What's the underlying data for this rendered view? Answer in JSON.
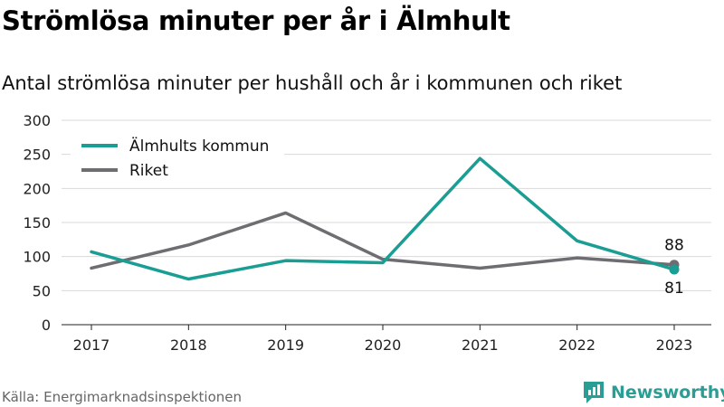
{
  "header": {
    "title": "Strömlösa minuter per år i Älmhult",
    "subtitle": "Antal strömlösa minuter per hushåll och år i kommunen och riket"
  },
  "footer": {
    "source": "Källa: Energimarknadsinspektionen",
    "brand": "Newsworthy"
  },
  "colors": {
    "almhult": "#1a9e94",
    "riket": "#6d6d72",
    "brand": "#2a9d95"
  },
  "chart_data": {
    "type": "line",
    "title": "Strömlösa minuter per år i Älmhult",
    "subtitle": "Antal strömlösa minuter per hushåll och år i kommunen och riket",
    "x": [
      "2017",
      "2018",
      "2019",
      "2020",
      "2021",
      "2022",
      "2023"
    ],
    "y_ticks": [
      "0",
      "50",
      "100",
      "150",
      "200",
      "250",
      "300"
    ],
    "ylim": [
      0,
      300
    ],
    "grid": true,
    "legend_position": "top-left",
    "series": [
      {
        "name": "Älmhults kommun",
        "values": [
          107,
          67,
          94,
          91,
          244,
          123,
          81
        ],
        "end_label": "81"
      },
      {
        "name": "Riket",
        "values": [
          83,
          117,
          164,
          96,
          83,
          98,
          88
        ],
        "end_label": "88"
      }
    ]
  }
}
